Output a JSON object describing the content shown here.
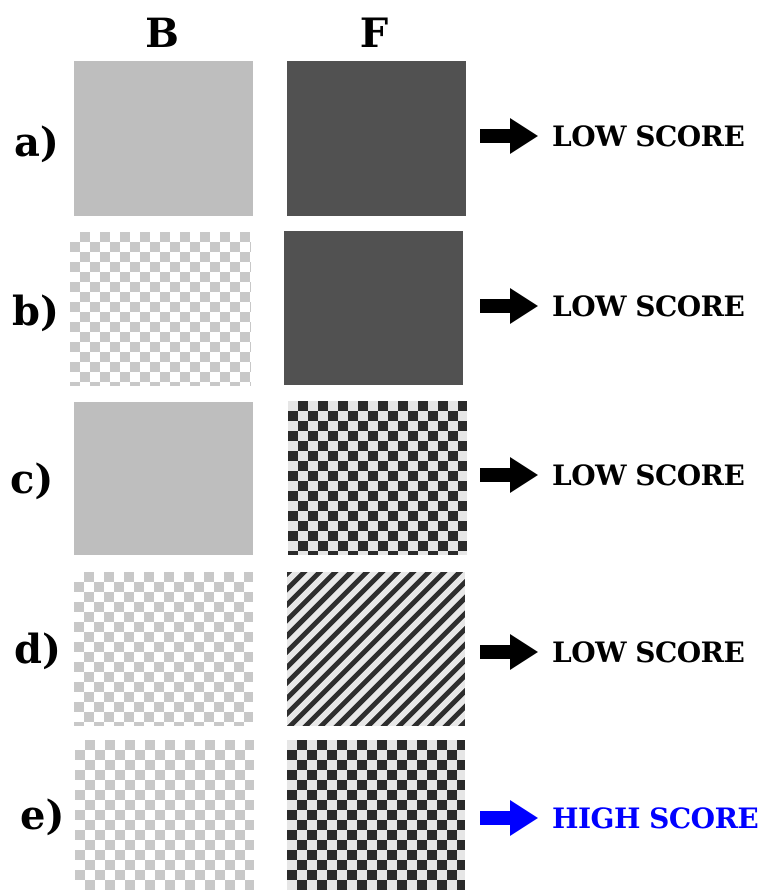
{
  "header": {
    "col_b": "B",
    "col_f": "F"
  },
  "rows": [
    {
      "label": "a)",
      "background": "solid-gray",
      "foreground": "solid-dark-gray",
      "score": "LOW SCORE",
      "score_color": "#000000",
      "arrow_icon": "right-arrow-icon"
    },
    {
      "label": "b)",
      "background": "light-checkerboard",
      "foreground": "solid-dark-gray",
      "score": "LOW SCORE",
      "score_color": "#000000",
      "arrow_icon": "right-arrow-icon"
    },
    {
      "label": "c)",
      "background": "solid-gray",
      "foreground": "dark-checkerboard",
      "score": "LOW SCORE",
      "score_color": "#000000",
      "arrow_icon": "right-arrow-icon"
    },
    {
      "label": "d)",
      "background": "light-checkerboard",
      "foreground": "diagonal-stripes",
      "score": "LOW SCORE",
      "score_color": "#000000",
      "arrow_icon": "right-arrow-icon"
    },
    {
      "label": "e)",
      "background": "light-checkerboard",
      "foreground": "dark-checkerboard",
      "score": "HIGH SCORE",
      "score_color": "#0000ff",
      "arrow_icon": "right-arrow-icon"
    }
  ]
}
